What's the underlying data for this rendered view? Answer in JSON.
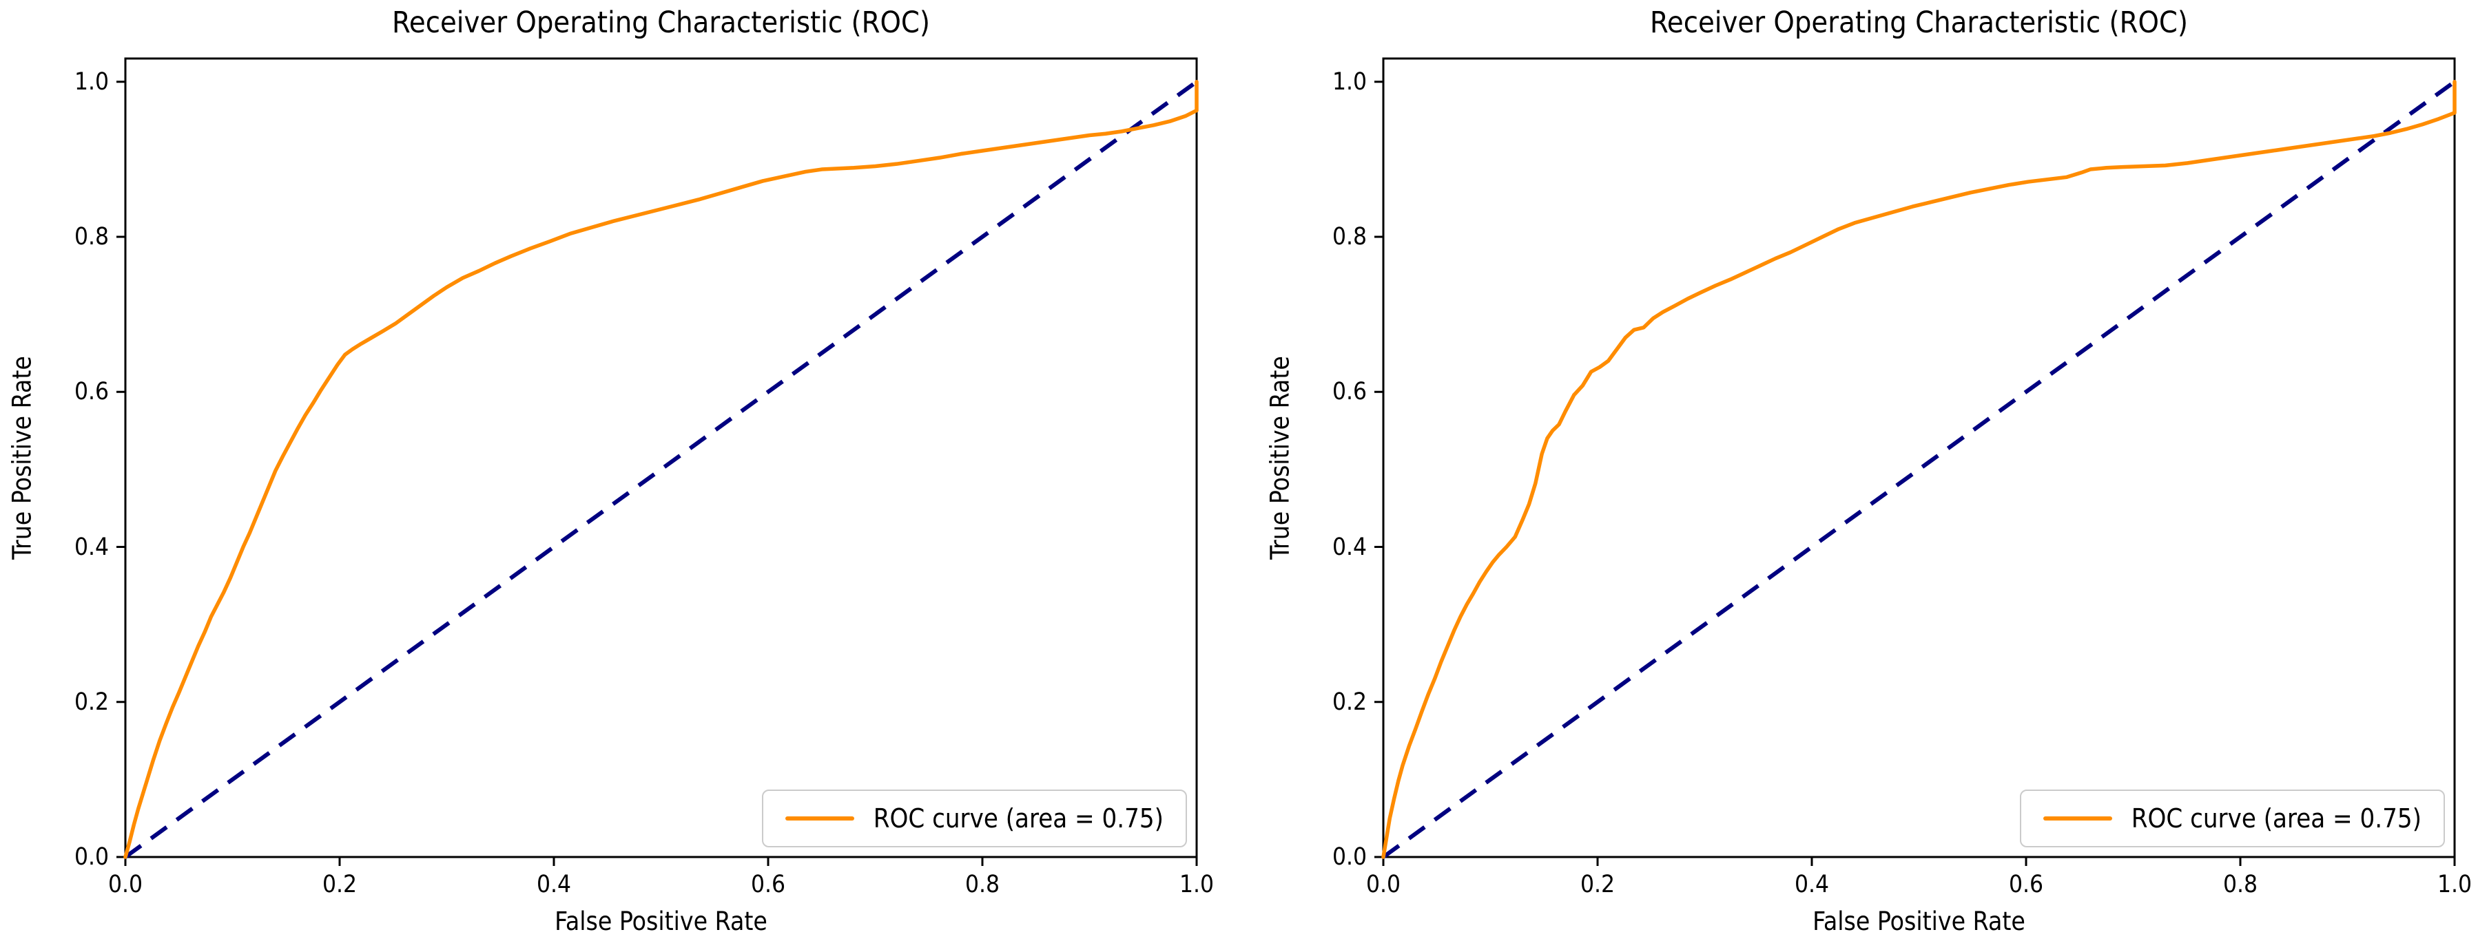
{
  "chart_data": [
    {
      "type": "line",
      "title": "Receiver Operating Characteristic (ROC)",
      "xlabel": "False Positive Rate",
      "ylabel": "True Positive Rate",
      "legend_label": "ROC curve (area = 0.75)",
      "legend_position": "lower right",
      "auc": 0.75,
      "xlim": [
        0,
        1.0
      ],
      "ylim": [
        0,
        1.03
      ],
      "xticks": [
        "0.0",
        "0.2",
        "0.4",
        "0.6",
        "0.8",
        "1.0"
      ],
      "yticks": [
        "0.0",
        "0.2",
        "0.4",
        "0.6",
        "0.8",
        "1.0"
      ],
      "grid": false,
      "roc_color": "#FF8C00",
      "diagonal_color": "#000080",
      "spine_color": "#000000",
      "diagonal": [
        [
          0,
          0
        ],
        [
          1,
          1
        ]
      ],
      "roc_points": [
        [
          0.0,
          0.0
        ],
        [
          0.004,
          0.02
        ],
        [
          0.008,
          0.042
        ],
        [
          0.012,
          0.062
        ],
        [
          0.016,
          0.08
        ],
        [
          0.02,
          0.098
        ],
        [
          0.026,
          0.125
        ],
        [
          0.032,
          0.15
        ],
        [
          0.038,
          0.172
        ],
        [
          0.044,
          0.193
        ],
        [
          0.05,
          0.212
        ],
        [
          0.056,
          0.232
        ],
        [
          0.062,
          0.252
        ],
        [
          0.068,
          0.272
        ],
        [
          0.074,
          0.29
        ],
        [
          0.08,
          0.31
        ],
        [
          0.086,
          0.326
        ],
        [
          0.092,
          0.342
        ],
        [
          0.098,
          0.36
        ],
        [
          0.104,
          0.38
        ],
        [
          0.11,
          0.4
        ],
        [
          0.116,
          0.418
        ],
        [
          0.122,
          0.438
        ],
        [
          0.128,
          0.458
        ],
        [
          0.134,
          0.478
        ],
        [
          0.14,
          0.498
        ],
        [
          0.147,
          0.517
        ],
        [
          0.154,
          0.535
        ],
        [
          0.161,
          0.553
        ],
        [
          0.168,
          0.57
        ],
        [
          0.175,
          0.585
        ],
        [
          0.182,
          0.601
        ],
        [
          0.19,
          0.618
        ],
        [
          0.198,
          0.635
        ],
        [
          0.205,
          0.648
        ],
        [
          0.212,
          0.655
        ],
        [
          0.22,
          0.662
        ],
        [
          0.23,
          0.67
        ],
        [
          0.24,
          0.678
        ],
        [
          0.252,
          0.688
        ],
        [
          0.264,
          0.7
        ],
        [
          0.276,
          0.712
        ],
        [
          0.288,
          0.724
        ],
        [
          0.3,
          0.735
        ],
        [
          0.315,
          0.747
        ],
        [
          0.33,
          0.756
        ],
        [
          0.345,
          0.766
        ],
        [
          0.36,
          0.775
        ],
        [
          0.378,
          0.785
        ],
        [
          0.396,
          0.794
        ],
        [
          0.415,
          0.804
        ],
        [
          0.435,
          0.812
        ],
        [
          0.455,
          0.82
        ],
        [
          0.475,
          0.827
        ],
        [
          0.495,
          0.834
        ],
        [
          0.515,
          0.841
        ],
        [
          0.535,
          0.848
        ],
        [
          0.555,
          0.856
        ],
        [
          0.575,
          0.864
        ],
        [
          0.595,
          0.872
        ],
        [
          0.615,
          0.878
        ],
        [
          0.635,
          0.884
        ],
        [
          0.65,
          0.887
        ],
        [
          0.665,
          0.888
        ],
        [
          0.68,
          0.889
        ],
        [
          0.7,
          0.891
        ],
        [
          0.72,
          0.894
        ],
        [
          0.74,
          0.898
        ],
        [
          0.76,
          0.902
        ],
        [
          0.78,
          0.907
        ],
        [
          0.8,
          0.911
        ],
        [
          0.82,
          0.915
        ],
        [
          0.84,
          0.919
        ],
        [
          0.86,
          0.923
        ],
        [
          0.88,
          0.927
        ],
        [
          0.9,
          0.931
        ],
        [
          0.915,
          0.933
        ],
        [
          0.93,
          0.936
        ],
        [
          0.945,
          0.94
        ],
        [
          0.96,
          0.944
        ],
        [
          0.975,
          0.949
        ],
        [
          0.99,
          0.956
        ],
        [
          1.0,
          0.963
        ],
        [
          1.0,
          1.0
        ]
      ]
    },
    {
      "type": "line",
      "title": "Receiver Operating Characteristic (ROC)",
      "xlabel": "False Positive Rate",
      "ylabel": "True Positive Rate",
      "legend_label": "ROC curve (area = 0.75)",
      "legend_position": "lower right",
      "auc": 0.75,
      "xlim": [
        0,
        1.0
      ],
      "ylim": [
        0,
        1.03
      ],
      "xticks": [
        "0.0",
        "0.2",
        "0.4",
        "0.6",
        "0.8",
        "1.0"
      ],
      "yticks": [
        "0.0",
        "0.2",
        "0.4",
        "0.6",
        "0.8",
        "1.0"
      ],
      "grid": false,
      "roc_color": "#FF8C00",
      "diagonal_color": "#000080",
      "spine_color": "#000000",
      "diagonal": [
        [
          0,
          0
        ],
        [
          1,
          1
        ]
      ],
      "roc_points": [
        [
          0.0,
          0.0
        ],
        [
          0.003,
          0.025
        ],
        [
          0.006,
          0.05
        ],
        [
          0.01,
          0.075
        ],
        [
          0.014,
          0.098
        ],
        [
          0.018,
          0.118
        ],
        [
          0.024,
          0.143
        ],
        [
          0.03,
          0.165
        ],
        [
          0.036,
          0.188
        ],
        [
          0.042,
          0.21
        ],
        [
          0.048,
          0.23
        ],
        [
          0.054,
          0.252
        ],
        [
          0.06,
          0.272
        ],
        [
          0.066,
          0.292
        ],
        [
          0.072,
          0.31
        ],
        [
          0.078,
          0.326
        ],
        [
          0.084,
          0.34
        ],
        [
          0.09,
          0.355
        ],
        [
          0.096,
          0.368
        ],
        [
          0.102,
          0.38
        ],
        [
          0.108,
          0.39
        ],
        [
          0.115,
          0.4
        ],
        [
          0.123,
          0.413
        ],
        [
          0.13,
          0.435
        ],
        [
          0.136,
          0.455
        ],
        [
          0.142,
          0.482
        ],
        [
          0.148,
          0.52
        ],
        [
          0.153,
          0.54
        ],
        [
          0.158,
          0.55
        ],
        [
          0.164,
          0.558
        ],
        [
          0.17,
          0.575
        ],
        [
          0.178,
          0.596
        ],
        [
          0.186,
          0.608
        ],
        [
          0.194,
          0.626
        ],
        [
          0.202,
          0.632
        ],
        [
          0.21,
          0.64
        ],
        [
          0.218,
          0.655
        ],
        [
          0.226,
          0.67
        ],
        [
          0.234,
          0.68
        ],
        [
          0.243,
          0.683
        ],
        [
          0.252,
          0.695
        ],
        [
          0.261,
          0.703
        ],
        [
          0.272,
          0.711
        ],
        [
          0.284,
          0.72
        ],
        [
          0.296,
          0.728
        ],
        [
          0.31,
          0.737
        ],
        [
          0.324,
          0.745
        ],
        [
          0.338,
          0.754
        ],
        [
          0.352,
          0.763
        ],
        [
          0.366,
          0.772
        ],
        [
          0.38,
          0.78
        ],
        [
          0.395,
          0.79
        ],
        [
          0.41,
          0.8
        ],
        [
          0.425,
          0.81
        ],
        [
          0.44,
          0.818
        ],
        [
          0.458,
          0.825
        ],
        [
          0.476,
          0.832
        ],
        [
          0.494,
          0.839
        ],
        [
          0.512,
          0.845
        ],
        [
          0.53,
          0.851
        ],
        [
          0.548,
          0.857
        ],
        [
          0.566,
          0.862
        ],
        [
          0.584,
          0.867
        ],
        [
          0.602,
          0.871
        ],
        [
          0.62,
          0.874
        ],
        [
          0.638,
          0.877
        ],
        [
          0.652,
          0.883
        ],
        [
          0.66,
          0.887
        ],
        [
          0.675,
          0.889
        ],
        [
          0.69,
          0.89
        ],
        [
          0.71,
          0.891
        ],
        [
          0.73,
          0.892
        ],
        [
          0.75,
          0.895
        ],
        [
          0.77,
          0.899
        ],
        [
          0.79,
          0.903
        ],
        [
          0.81,
          0.907
        ],
        [
          0.83,
          0.911
        ],
        [
          0.85,
          0.915
        ],
        [
          0.87,
          0.919
        ],
        [
          0.89,
          0.923
        ],
        [
          0.91,
          0.927
        ],
        [
          0.925,
          0.93
        ],
        [
          0.94,
          0.934
        ],
        [
          0.955,
          0.939
        ],
        [
          0.97,
          0.945
        ],
        [
          0.985,
          0.952
        ],
        [
          1.0,
          0.96
        ],
        [
          1.0,
          1.0
        ]
      ]
    }
  ]
}
